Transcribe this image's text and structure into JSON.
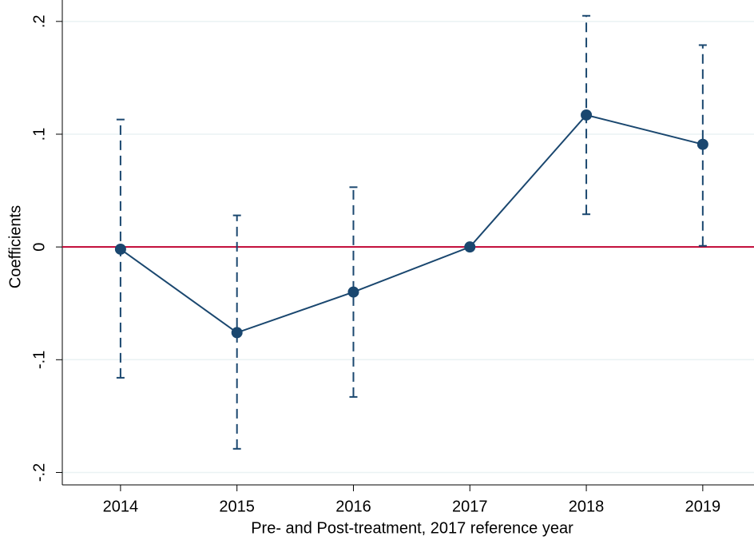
{
  "chart_data": {
    "type": "line",
    "x_label": "Pre- and Post-treatment, 2017 reference year",
    "y_label": "Coefficients",
    "x": [
      2014,
      2015,
      2016,
      2017,
      2018,
      2019
    ],
    "values": [
      -0.002,
      -0.076,
      -0.04,
      0,
      0.117,
      0.091
    ],
    "ci_lower": [
      -0.116,
      -0.179,
      -0.133,
      null,
      0.029,
      0.001
    ],
    "ci_upper": [
      0.113,
      0.028,
      0.053,
      null,
      0.205,
      0.179
    ],
    "xlim": [
      2013.5,
      2019.44
    ],
    "xticks": [
      2014,
      2015,
      2016,
      2017,
      2018,
      2019
    ],
    "ylim": [
      -0.211,
      0.219
    ],
    "yticks": [
      {
        "value": -0.2,
        "label": "-.2"
      },
      {
        "value": -0.1,
        "label": "-.1"
      },
      0,
      {
        "value": 0.1,
        "label": ".1"
      },
      {
        "value": 0.2,
        "label": ".2"
      }
    ],
    "color": "#1a476f",
    "refline": 0,
    "refline_color": "#c10534",
    "grid": true
  }
}
